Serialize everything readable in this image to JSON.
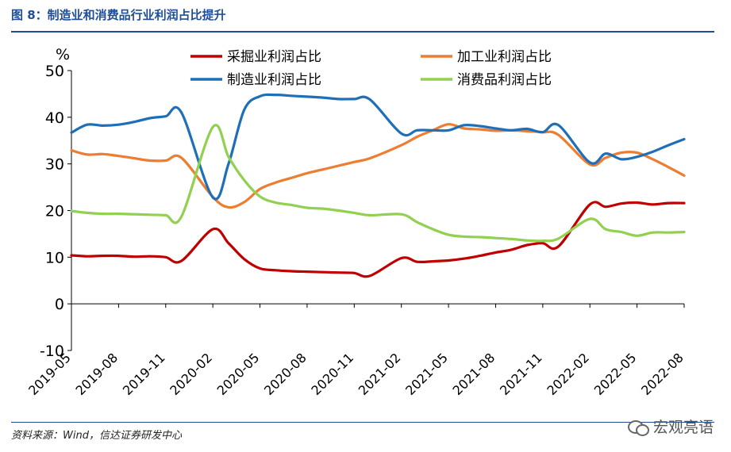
{
  "figure": {
    "title": "图 8：制造业和消费品行业利润占比提升",
    "source": "资料来源：Wind，信达证券研发中心",
    "watermark": "宏观亮语"
  },
  "chart_data": {
    "type": "line",
    "title": "制造业和消费品行业利润占比提升",
    "ylabel": "%",
    "xlabel": "",
    "ylim": [
      -10,
      50
    ],
    "yticks": [
      -10,
      0,
      10,
      20,
      30,
      40,
      50
    ],
    "grid": false,
    "legend_position": "top",
    "x_tick_labels": [
      "2019-05",
      "2019-08",
      "2019-11",
      "2020-02",
      "2020-05",
      "2020-08",
      "2020-11",
      "2021-02",
      "2021-05",
      "2021-08",
      "2021-11",
      "2022-02",
      "2022-05",
      "2022-08"
    ],
    "x": [
      "2019-05",
      "2019-06",
      "2019-07",
      "2019-08",
      "2019-09",
      "2019-10",
      "2019-11",
      "2019-12",
      "2020-02",
      "2020-03",
      "2020-04",
      "2020-05",
      "2020-06",
      "2020-07",
      "2020-08",
      "2020-09",
      "2020-10",
      "2020-11",
      "2020-12",
      "2021-02",
      "2021-03",
      "2021-04",
      "2021-05",
      "2021-06",
      "2021-07",
      "2021-08",
      "2021-09",
      "2021-10",
      "2021-11",
      "2021-12",
      "2022-02",
      "2022-03",
      "2022-04",
      "2022-05",
      "2022-06",
      "2022-07",
      "2022-08"
    ],
    "series": [
      {
        "name": "采掘业利润占比",
        "color": "#c00000",
        "values": [
          10.4,
          10.2,
          10.3,
          10.3,
          10.1,
          10.2,
          10.0,
          9.2,
          16.0,
          13.0,
          9.6,
          7.6,
          7.2,
          7.0,
          6.9,
          6.8,
          6.7,
          6.6,
          6.0,
          9.8,
          9.0,
          9.1,
          9.3,
          9.7,
          10.3,
          11.0,
          11.6,
          12.6,
          13.0,
          12.3,
          21.3,
          20.8,
          21.5,
          21.7,
          21.3,
          21.6,
          21.6
        ]
      },
      {
        "name": "加工业利润占比",
        "color": "#ed7d31",
        "values": [
          32.9,
          32.0,
          32.1,
          31.7,
          31.2,
          30.7,
          30.7,
          31.3,
          22.9,
          20.7,
          21.8,
          24.6,
          26.0,
          27.0,
          28.0,
          28.8,
          29.6,
          30.4,
          31.2,
          34.0,
          35.8,
          37.2,
          38.5,
          37.6,
          37.4,
          37.1,
          37.2,
          37.0,
          36.8,
          36.2,
          29.9,
          31.3,
          32.4,
          32.4,
          31.0,
          29.3,
          27.5
        ]
      },
      {
        "name": "制造业利润占比",
        "color": "#1f6fb8",
        "values": [
          36.7,
          38.4,
          38.2,
          38.4,
          39.0,
          39.8,
          40.2,
          41.0,
          22.8,
          30.0,
          41.6,
          44.5,
          44.8,
          44.6,
          44.4,
          44.2,
          43.9,
          43.9,
          43.8,
          36.5,
          37.2,
          37.2,
          37.2,
          38.3,
          38.1,
          37.6,
          37.2,
          37.5,
          36.8,
          38.3,
          30.3,
          32.2,
          31.0,
          31.5,
          32.6,
          34.0,
          35.3
        ]
      },
      {
        "name": "消费品利润占比",
        "color": "#92d050",
        "values": [
          19.9,
          19.5,
          19.3,
          19.3,
          19.2,
          19.1,
          19.0,
          18.7,
          37.9,
          31.5,
          26.5,
          23.0,
          21.7,
          21.2,
          20.6,
          20.4,
          20.0,
          19.5,
          19.0,
          19.2,
          17.5,
          16.0,
          14.8,
          14.4,
          14.3,
          14.1,
          13.9,
          13.6,
          13.5,
          14.0,
          18.2,
          16.0,
          15.4,
          14.6,
          15.3,
          15.3,
          15.4
        ]
      }
    ]
  }
}
